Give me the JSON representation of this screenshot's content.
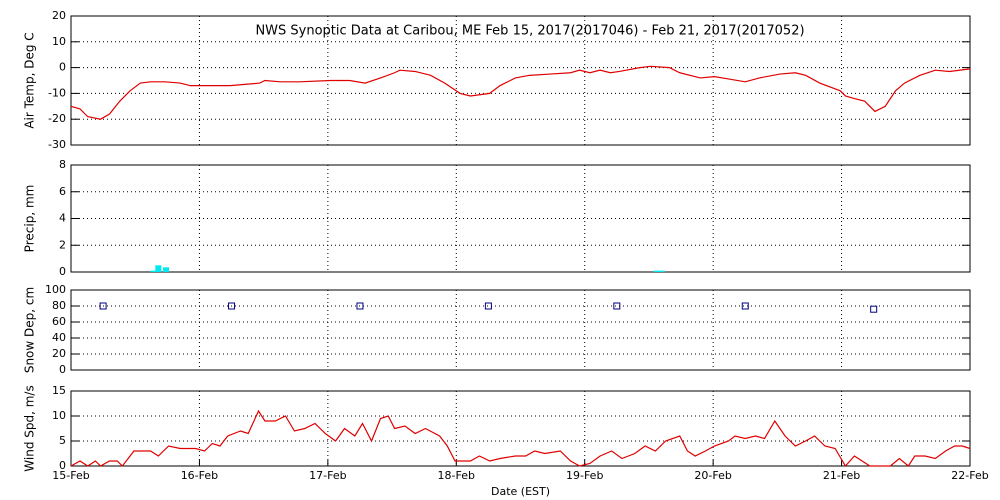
{
  "chart_data": [
    {
      "type": "line",
      "title": "NWS Synoptic Data at Caribou, ME   Feb 15, 2017(2017046) - Feb 21, 2017(2017052)",
      "ylabel": "Air Temp, Deg C",
      "xlim": [
        15,
        22
      ],
      "ylim": [
        -30,
        20
      ],
      "yticks": [
        -30,
        -20,
        -10,
        0,
        10,
        20
      ],
      "grid": true,
      "x": [
        15.0,
        15.07,
        15.13,
        15.23,
        15.3,
        15.38,
        15.46,
        15.54,
        15.62,
        15.73,
        15.85,
        15.93,
        16.0,
        16.24,
        16.47,
        16.51,
        16.63,
        16.78,
        17.02,
        17.17,
        17.29,
        17.41,
        17.52,
        17.56,
        17.68,
        17.8,
        17.91,
        18.03,
        18.11,
        18.26,
        18.34,
        18.46,
        18.57,
        18.73,
        18.89,
        18.96,
        19.04,
        19.12,
        19.2,
        19.27,
        19.43,
        19.51,
        19.66,
        19.74,
        19.9,
        20.01,
        20.13,
        20.25,
        20.36,
        20.52,
        20.64,
        20.72,
        20.83,
        20.99,
        21.03,
        21.1,
        21.18,
        21.26,
        21.34,
        21.42,
        21.49,
        21.61,
        21.73,
        21.84,
        22.0
      ],
      "series": [
        {
          "color": "#e00000",
          "values": [
            -15,
            -16,
            -19,
            -20,
            -18,
            -13,
            -9,
            -6,
            -5.5,
            -5.5,
            -6,
            -7,
            -7,
            -7,
            -6,
            -5,
            -5.5,
            -5.5,
            -5,
            -5,
            -6,
            -4,
            -2,
            -1,
            -1.5,
            -3,
            -6,
            -10,
            -11,
            -10,
            -7,
            -4,
            -3,
            -2.5,
            -2,
            -1,
            -2,
            -1,
            -2,
            -1.5,
            0,
            0.5,
            0,
            -2,
            -4,
            -3.5,
            -4.5,
            -5.5,
            -4,
            -2.5,
            -2,
            -3,
            -6,
            -9,
            -11,
            -12,
            -13,
            -17,
            -15,
            -9,
            -6,
            -3,
            -1,
            -1.5,
            -0.5
          ]
        }
      ]
    },
    {
      "type": "bar",
      "ylabel": "Precip, mm",
      "xlim": [
        15,
        22
      ],
      "ylim": [
        0,
        8
      ],
      "yticks": [
        0,
        2,
        4,
        6,
        8
      ],
      "grid": true,
      "x": [
        15.64,
        15.68,
        15.74,
        19.56,
        19.6
      ],
      "series": [
        {
          "color": "#00e8f0",
          "values": [
            0.1,
            0.5,
            0.35,
            0.1,
            0.1
          ]
        }
      ]
    },
    {
      "type": "scatter",
      "ylabel": "Snow Dep, cm",
      "xlim": [
        15,
        22
      ],
      "ylim": [
        0,
        100
      ],
      "yticks": [
        0,
        20,
        40,
        60,
        80,
        100
      ],
      "grid": true,
      "x": [
        15.25,
        16.25,
        17.25,
        18.25,
        19.25,
        20.25,
        21.25
      ],
      "series": [
        {
          "color": "#000080",
          "values": [
            80,
            80,
            80,
            80,
            80,
            80,
            76
          ]
        }
      ]
    },
    {
      "type": "line",
      "ylabel": "Wind Spd, m/s",
      "xlabel": "Date (EST)",
      "xlim": [
        15,
        22
      ],
      "ylim": [
        0,
        15
      ],
      "yticks": [
        0,
        5,
        10,
        15
      ],
      "grid": true,
      "xticks": [
        {
          "value": 15,
          "label": "15-Feb"
        },
        {
          "value": 16,
          "label": "16-Feb"
        },
        {
          "value": 17,
          "label": "17-Feb"
        },
        {
          "value": 18,
          "label": "18-Feb"
        },
        {
          "value": 19,
          "label": "19-Feb"
        },
        {
          "value": 20,
          "label": "20-Feb"
        },
        {
          "value": 21,
          "label": "21-Feb"
        },
        {
          "value": 22,
          "label": "22-Feb"
        }
      ],
      "x": [
        15.0,
        15.07,
        15.13,
        15.19,
        15.23,
        15.3,
        15.36,
        15.4,
        15.49,
        15.62,
        15.68,
        15.76,
        15.85,
        15.97,
        16.04,
        16.1,
        16.16,
        16.22,
        16.32,
        16.38,
        16.46,
        16.51,
        16.59,
        16.67,
        16.74,
        16.82,
        16.9,
        16.98,
        17.06,
        17.13,
        17.21,
        17.27,
        17.34,
        17.41,
        17.47,
        17.52,
        17.6,
        17.68,
        17.76,
        17.87,
        17.93,
        17.99,
        18.11,
        18.18,
        18.26,
        18.34,
        18.46,
        18.54,
        18.61,
        18.69,
        18.81,
        18.89,
        18.96,
        19.04,
        19.12,
        19.21,
        19.29,
        19.39,
        19.47,
        19.55,
        19.63,
        19.74,
        19.8,
        19.86,
        19.94,
        20.01,
        20.12,
        20.17,
        20.25,
        20.33,
        20.4,
        20.48,
        20.56,
        20.64,
        20.72,
        20.79,
        20.87,
        20.95,
        21.03,
        21.1,
        21.16,
        21.22,
        21.3,
        21.38,
        21.45,
        21.52,
        21.57,
        21.65,
        21.73,
        21.81,
        21.88,
        21.94,
        22.0
      ],
      "series": [
        {
          "color": "#e00000",
          "values": [
            0,
            1,
            0,
            1,
            0,
            1,
            1,
            0,
            3,
            3,
            2,
            4,
            3.5,
            3.5,
            3,
            4.5,
            4,
            6,
            7,
            6.5,
            11,
            9,
            9,
            10,
            7,
            7.5,
            8.5,
            6.5,
            5,
            7.5,
            6,
            8.5,
            5,
            9.5,
            10,
            7.5,
            8,
            6.5,
            7.5,
            6,
            4,
            1,
            1,
            2,
            1,
            1.5,
            2,
            2,
            3,
            2.5,
            3,
            1,
            0,
            0.5,
            2,
            3,
            1.5,
            2.5,
            4,
            3,
            5,
            6,
            3,
            2,
            3,
            4,
            5,
            6,
            5.5,
            6,
            5.5,
            9,
            6,
            4,
            5,
            6,
            4,
            3.5,
            0,
            2,
            1,
            0,
            0,
            0,
            1.5,
            0,
            2,
            2,
            1.5,
            3,
            4,
            4,
            3.5
          ]
        }
      ]
    }
  ]
}
